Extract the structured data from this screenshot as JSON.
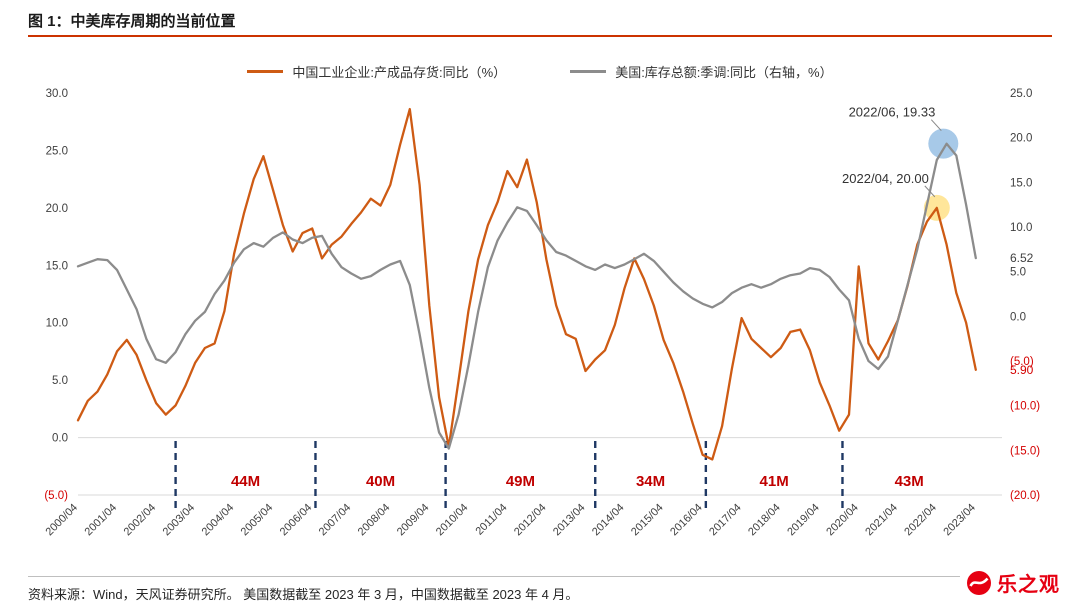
{
  "title": "图 1：中美库存周期的当前位置",
  "footer": {
    "text": "资料来源：Wind，天风证券研究所。 美国数据截至 2023 年 3 月，中国数据截至 2023 年 4 月。",
    "watermark": "乐之观"
  },
  "colors": {
    "title_rule": "#CC3300",
    "axis_text": "#404040",
    "negative_tick": "#D40000",
    "gridline": "#D9D9D9",
    "footer_rule": "#BFBFBF",
    "watermark": "#E60012",
    "annotation_text": "#333333"
  },
  "chart_data": {
    "type": "line",
    "legend_position": "top",
    "grid": false,
    "unit": "%",
    "x_range": [
      2000.25,
      2023.92
    ],
    "x_axis_labels": [
      "2000/04",
      "2001/04",
      "2002/04",
      "2003/04",
      "2004/04",
      "2005/04",
      "2006/04",
      "2007/04",
      "2008/04",
      "2009/04",
      "2010/04",
      "2011/04",
      "2012/04",
      "2013/04",
      "2014/04",
      "2015/04",
      "2016/04",
      "2017/04",
      "2018/04",
      "2019/04",
      "2020/04",
      "2021/04",
      "2022/04",
      "2023/04"
    ],
    "left_axis": {
      "min": -5,
      "max": 30,
      "ticks": [
        30,
        25,
        20,
        15,
        10,
        5,
        0,
        -5
      ]
    },
    "right_axis": {
      "min": -20,
      "max": 25,
      "ticks": [
        25,
        20,
        15,
        10,
        5,
        0,
        -5,
        -10,
        -15,
        -20
      ]
    },
    "series": [
      {
        "name": "中国工业企业:产成品存货:同比（%）",
        "axis": "left",
        "color": "#CE5B14",
        "x_start": 2000.25,
        "x_step": 0.25,
        "values": [
          1.5,
          3.2,
          4.0,
          5.5,
          7.5,
          8.5,
          7.2,
          5.0,
          3.0,
          2.0,
          2.8,
          4.5,
          6.5,
          7.8,
          8.2,
          11.0,
          16.0,
          19.5,
          22.5,
          24.5,
          21.5,
          18.5,
          16.2,
          17.8,
          18.2,
          15.6,
          16.8,
          17.5,
          18.6,
          19.6,
          20.8,
          20.2,
          22.0,
          25.5,
          28.6,
          22.0,
          11.5,
          3.5,
          -0.8,
          5.0,
          11.0,
          15.5,
          18.5,
          20.5,
          23.2,
          21.8,
          24.2,
          20.5,
          15.5,
          11.5,
          9.0,
          8.6,
          5.8,
          6.8,
          7.6,
          9.8,
          13.0,
          15.6,
          13.8,
          11.5,
          8.5,
          6.5,
          4.0,
          1.2,
          -1.5,
          -1.9,
          1.0,
          6.0,
          10.4,
          8.6,
          7.8,
          7.0,
          7.8,
          9.2,
          9.4,
          7.6,
          4.8,
          2.8,
          0.6,
          2.0,
          14.9,
          8.2,
          6.8,
          8.4,
          10.2,
          13.2,
          16.8,
          18.8,
          20.0,
          16.8,
          12.6,
          10.0,
          5.9
        ]
      },
      {
        "name": "美国:库存总额:季调:同比（右轴，%）",
        "axis": "right",
        "color": "#8C8C8C",
        "x_start": 2000.25,
        "x_step": 0.25,
        "values": [
          5.6,
          6.0,
          6.4,
          6.3,
          5.2,
          3.0,
          0.8,
          -2.5,
          -4.8,
          -5.2,
          -4.0,
          -2.0,
          -0.5,
          0.5,
          2.5,
          4.0,
          6.0,
          7.5,
          8.2,
          7.8,
          8.8,
          9.4,
          8.6,
          8.2,
          8.8,
          9.0,
          7.0,
          5.5,
          4.8,
          4.2,
          4.5,
          5.2,
          5.8,
          6.2,
          3.5,
          -2.0,
          -8.0,
          -13.0,
          -14.8,
          -11.0,
          -5.5,
          0.5,
          5.5,
          8.5,
          10.5,
          12.2,
          11.8,
          10.2,
          8.5,
          7.2,
          6.8,
          6.2,
          5.6,
          5.2,
          5.8,
          5.4,
          5.8,
          6.4,
          7.0,
          6.2,
          5.0,
          3.8,
          2.8,
          2.0,
          1.4,
          1.0,
          1.6,
          2.6,
          3.2,
          3.6,
          3.2,
          3.6,
          4.2,
          4.6,
          4.8,
          5.4,
          5.2,
          4.4,
          3.0,
          1.8,
          -2.5,
          -5.0,
          -5.9,
          -4.5,
          -0.5,
          3.5,
          7.5,
          12.5,
          17.5,
          19.33,
          18.0,
          12.5,
          6.52
        ]
      }
    ],
    "annotations": [
      {
        "text": "2022/06, 19.33",
        "date": "2022/06",
        "value": 19.33,
        "axis": "right",
        "circle_color": "#9DC3E6",
        "circle_r": 15
      },
      {
        "text": "2022/04, 20.00",
        "date": "2022/04",
        "value": 20.0,
        "axis": "left",
        "circle_color": "#FFE38F",
        "circle_r": 13
      }
    ],
    "end_labels": [
      {
        "text": "6.52",
        "axis": "right",
        "value": 6.52,
        "color": "#404040"
      },
      {
        "text": "5.90",
        "axis": "left",
        "value": 5.9,
        "color": "#D40000"
      }
    ],
    "cycle_markers": {
      "boundaries": [
        "2002/10",
        "2006/05",
        "2009/09",
        "2013/07",
        "2016/05",
        "2019/11"
      ],
      "labels": [
        "44M",
        "40M",
        "49M",
        "34M",
        "41M",
        "43M"
      ],
      "end_date": "2023/04",
      "line_color": "#1F3864",
      "label_color": "#C00000"
    }
  }
}
